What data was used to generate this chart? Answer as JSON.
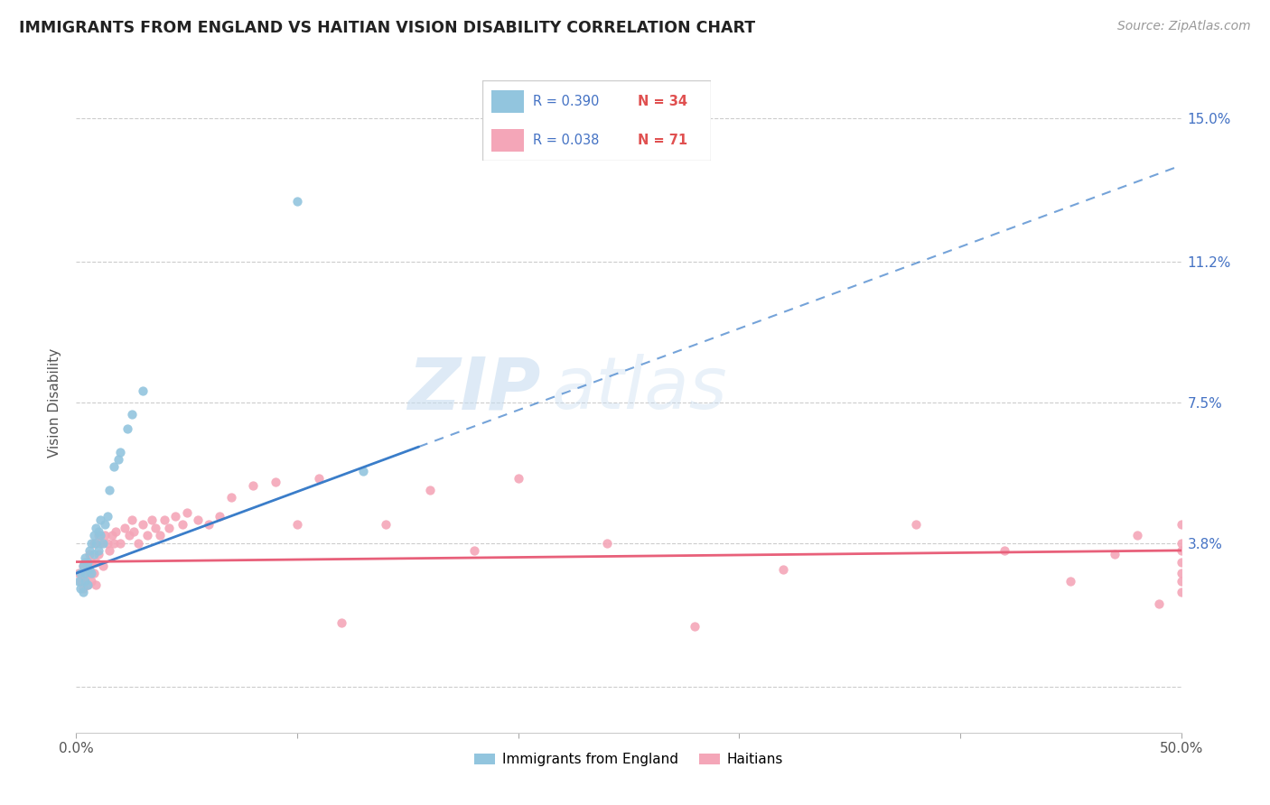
{
  "title": "IMMIGRANTS FROM ENGLAND VS HAITIAN VISION DISABILITY CORRELATION CHART",
  "source": "Source: ZipAtlas.com",
  "ylabel": "Vision Disability",
  "xlim": [
    0.0,
    0.5
  ],
  "ylim": [
    -0.012,
    0.162
  ],
  "england_color": "#92c5de",
  "haitian_color": "#f4a6b8",
  "england_line_color": "#3a7dc9",
  "haitian_line_color": "#e8607a",
  "england_R": 0.39,
  "england_N": 34,
  "haitian_R": 0.038,
  "haitian_N": 71,
  "watermark_zip": "ZIP",
  "watermark_atlas": "atlas",
  "line_slope": 0.215,
  "line_intercept": 0.03,
  "haitian_slope": 0.006,
  "haitian_intercept": 0.033,
  "england_scatter_x": [
    0.001,
    0.002,
    0.002,
    0.003,
    0.003,
    0.004,
    0.004,
    0.004,
    0.005,
    0.005,
    0.006,
    0.006,
    0.007,
    0.007,
    0.008,
    0.008,
    0.009,
    0.009,
    0.01,
    0.01,
    0.011,
    0.011,
    0.012,
    0.013,
    0.014,
    0.015,
    0.017,
    0.019,
    0.02,
    0.023,
    0.025,
    0.03,
    0.1,
    0.13
  ],
  "england_scatter_y": [
    0.028,
    0.026,
    0.03,
    0.025,
    0.032,
    0.03,
    0.028,
    0.034,
    0.027,
    0.033,
    0.031,
    0.036,
    0.03,
    0.038,
    0.035,
    0.04,
    0.038,
    0.042,
    0.036,
    0.041,
    0.04,
    0.044,
    0.038,
    0.043,
    0.045,
    0.052,
    0.058,
    0.06,
    0.062,
    0.068,
    0.072,
    0.078,
    0.128,
    0.057
  ],
  "haitian_scatter_x": [
    0.001,
    0.002,
    0.003,
    0.003,
    0.004,
    0.004,
    0.005,
    0.005,
    0.006,
    0.006,
    0.007,
    0.007,
    0.008,
    0.008,
    0.009,
    0.009,
    0.01,
    0.01,
    0.011,
    0.012,
    0.013,
    0.014,
    0.015,
    0.016,
    0.017,
    0.018,
    0.02,
    0.022,
    0.024,
    0.025,
    0.026,
    0.028,
    0.03,
    0.032,
    0.034,
    0.036,
    0.038,
    0.04,
    0.042,
    0.045,
    0.048,
    0.05,
    0.055,
    0.06,
    0.065,
    0.07,
    0.08,
    0.09,
    0.1,
    0.11,
    0.12,
    0.14,
    0.16,
    0.18,
    0.2,
    0.24,
    0.28,
    0.32,
    0.38,
    0.42,
    0.45,
    0.47,
    0.48,
    0.49,
    0.5,
    0.5,
    0.5,
    0.5,
    0.5,
    0.5,
    0.5
  ],
  "haitian_scatter_y": [
    0.03,
    0.028,
    0.032,
    0.026,
    0.029,
    0.033,
    0.031,
    0.027,
    0.03,
    0.035,
    0.028,
    0.033,
    0.03,
    0.038,
    0.033,
    0.027,
    0.035,
    0.04,
    0.038,
    0.032,
    0.04,
    0.038,
    0.036,
    0.04,
    0.038,
    0.041,
    0.038,
    0.042,
    0.04,
    0.044,
    0.041,
    0.038,
    0.043,
    0.04,
    0.044,
    0.042,
    0.04,
    0.044,
    0.042,
    0.045,
    0.043,
    0.046,
    0.044,
    0.043,
    0.045,
    0.05,
    0.053,
    0.054,
    0.043,
    0.055,
    0.017,
    0.043,
    0.052,
    0.036,
    0.055,
    0.038,
    0.016,
    0.031,
    0.043,
    0.036,
    0.028,
    0.035,
    0.04,
    0.022,
    0.036,
    0.03,
    0.025,
    0.038,
    0.033,
    0.028,
    0.043
  ]
}
